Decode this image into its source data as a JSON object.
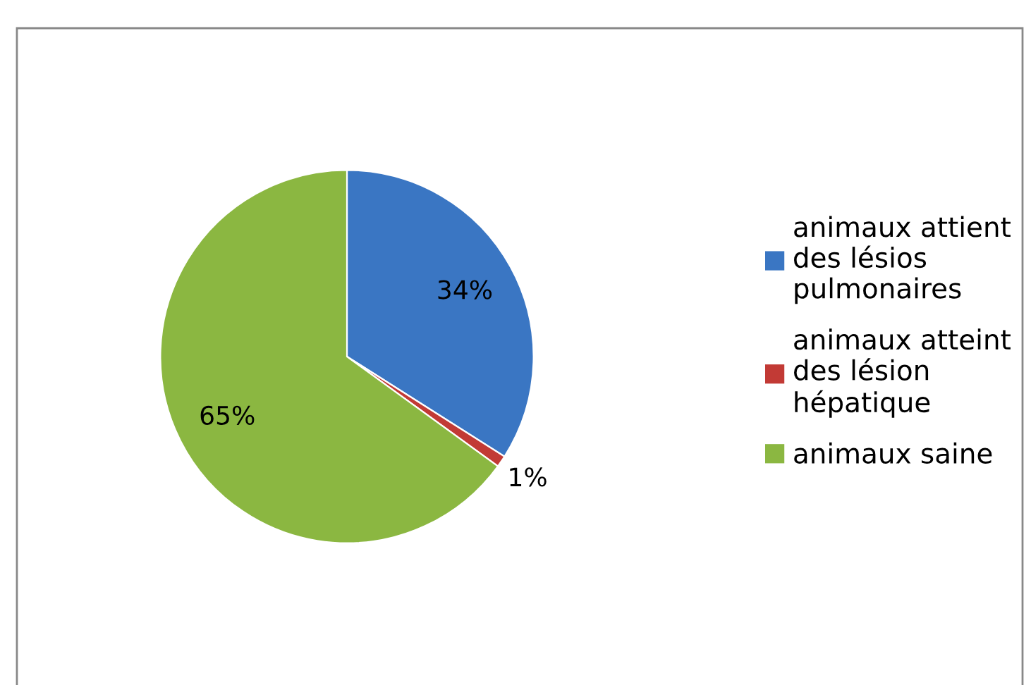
{
  "chart_data": {
    "type": "pie",
    "categories": [
      "animaux attient des lésios pulmonaires",
      "animaux atteint des lésion hépatique",
      "animaux saine"
    ],
    "values": [
      34,
      1,
      65
    ],
    "colors": [
      "#3a76c3",
      "#c23a35",
      "#8bb741"
    ],
    "value_labels": [
      "34%",
      "1%",
      "65%"
    ],
    "legend": "right"
  }
}
